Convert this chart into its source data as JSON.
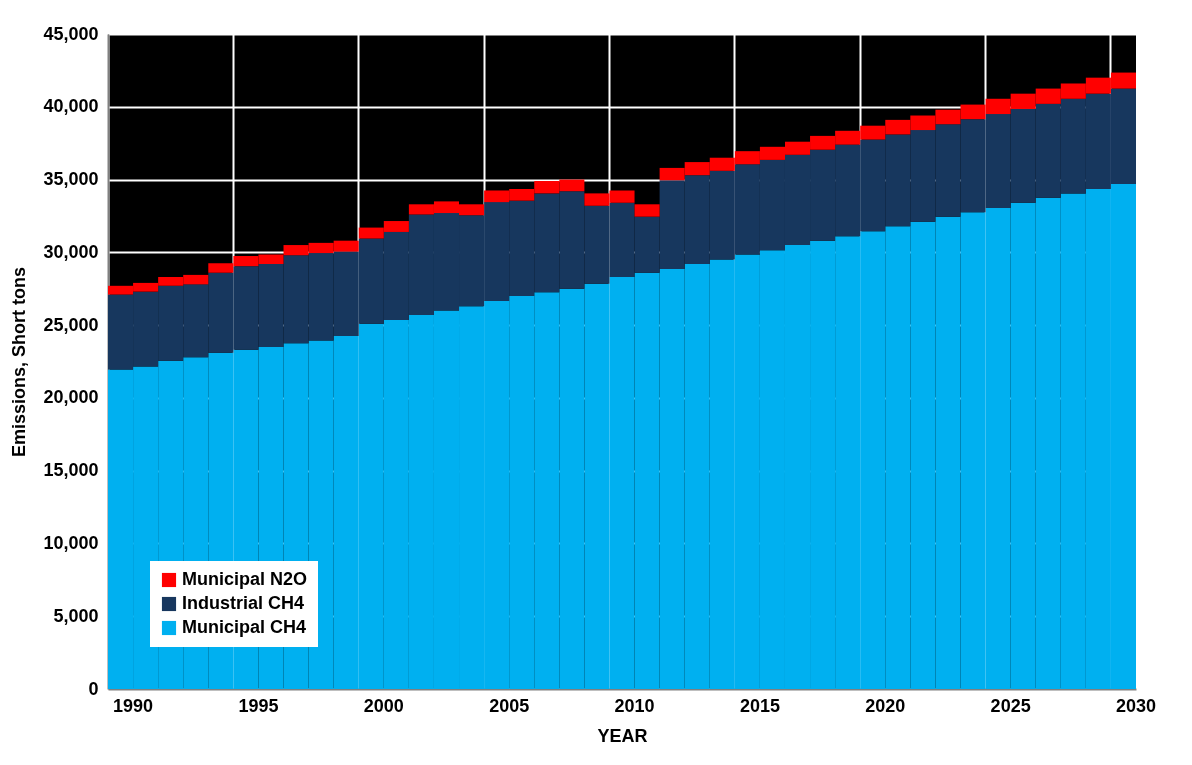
{
  "chart_data": {
    "type": "bar",
    "stacked": true,
    "xlabel": "YEAR",
    "ylabel": "Emissions, Short tons",
    "categories": [
      "1990",
      null,
      null,
      null,
      null,
      "1995",
      null,
      null,
      null,
      null,
      "2000",
      null,
      null,
      null,
      null,
      "2005",
      null,
      null,
      null,
      null,
      "2010",
      null,
      null,
      null,
      null,
      "2015",
      null,
      null,
      null,
      null,
      "2020",
      null,
      null,
      null,
      null,
      "2025",
      null,
      null,
      null,
      null,
      "2030"
    ],
    "series": [
      {
        "name": "Municipal CH4",
        "color": "#00b0f0",
        "values": [
          21950,
          22150,
          22550,
          22800,
          23100,
          23300,
          23500,
          23750,
          23950,
          24250,
          25100,
          25350,
          25700,
          26000,
          26300,
          26650,
          27000,
          27250,
          27500,
          27850,
          28300,
          28600,
          28850,
          29200,
          29500,
          29850,
          30150,
          30500,
          30800,
          31100,
          31450,
          31800,
          32100,
          32450,
          32750,
          33050,
          33400,
          33750,
          34050,
          34350,
          34700
        ]
      },
      {
        "name": "Industrial CH4",
        "color": "#17375e",
        "values": [
          5150,
          5150,
          5150,
          5000,
          5500,
          5750,
          5700,
          6050,
          6000,
          5800,
          5850,
          6050,
          6900,
          6700,
          6250,
          6800,
          6550,
          6800,
          6700,
          5350,
          5100,
          3850,
          6100,
          6100,
          6100,
          6200,
          6200,
          6200,
          6250,
          6300,
          6300,
          6300,
          6300,
          6350,
          6400,
          6450,
          6450,
          6450,
          6500,
          6550,
          6550
        ]
      },
      {
        "name": "Municipal N2O",
        "color": "#ff0000",
        "values": [
          600,
          600,
          600,
          650,
          650,
          700,
          650,
          700,
          700,
          750,
          750,
          750,
          700,
          800,
          750,
          800,
          800,
          850,
          800,
          850,
          850,
          850,
          850,
          900,
          900,
          900,
          900,
          900,
          950,
          950,
          950,
          1000,
          1000,
          1000,
          1000,
          1050,
          1050,
          1050,
          1050,
          1100,
          1100
        ]
      }
    ],
    "ylim": [
      0,
      45000
    ],
    "yticks": [
      {
        "value": 0,
        "label": "0"
      },
      {
        "value": 5000,
        "label": "5,000"
      },
      {
        "value": 10000,
        "label": "10,000"
      },
      {
        "value": 15000,
        "label": "15,000"
      },
      {
        "value": 20000,
        "label": "20,000"
      },
      {
        "value": 25000,
        "label": "25,000"
      },
      {
        "value": 30000,
        "label": "30,000"
      },
      {
        "value": 35000,
        "label": "35,000"
      },
      {
        "value": 40000,
        "label": "40,000"
      },
      {
        "value": 45000,
        "label": "45,000"
      }
    ],
    "grid": true,
    "legend": "bottom left"
  }
}
